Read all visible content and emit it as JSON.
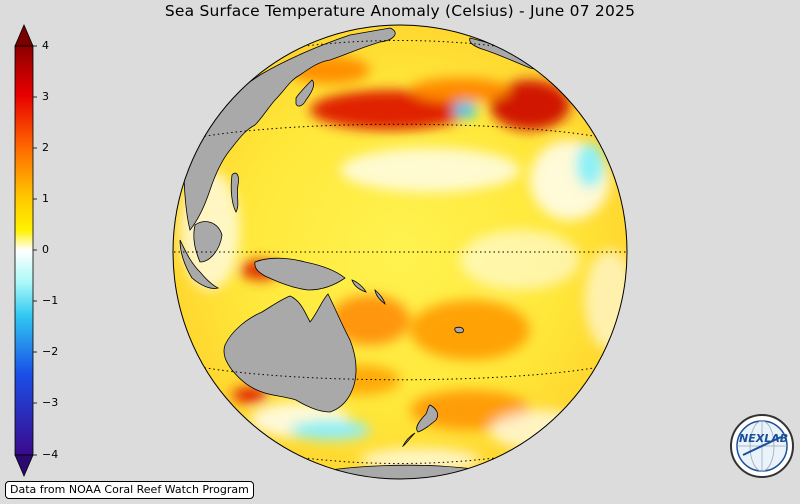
{
  "title": "Sea Surface Temperature Anomaly (Celsius) - June 07 2025",
  "colorbar": {
    "ticks": [
      "4",
      "3",
      "2",
      "1",
      "0",
      "−1",
      "−2",
      "−3",
      "−4"
    ],
    "colors": {
      "top_arrow": "#7a0000",
      "bottom_arrow": "#2a0a70"
    }
  },
  "credit": "Data from NOAA Coral Reef Watch Program",
  "logo": {
    "text": "NEXLAB",
    "icon": "globe-logo-icon"
  },
  "map": {
    "land_color": "#a9a9a9",
    "ocean_base_color": "#fff25a"
  }
}
